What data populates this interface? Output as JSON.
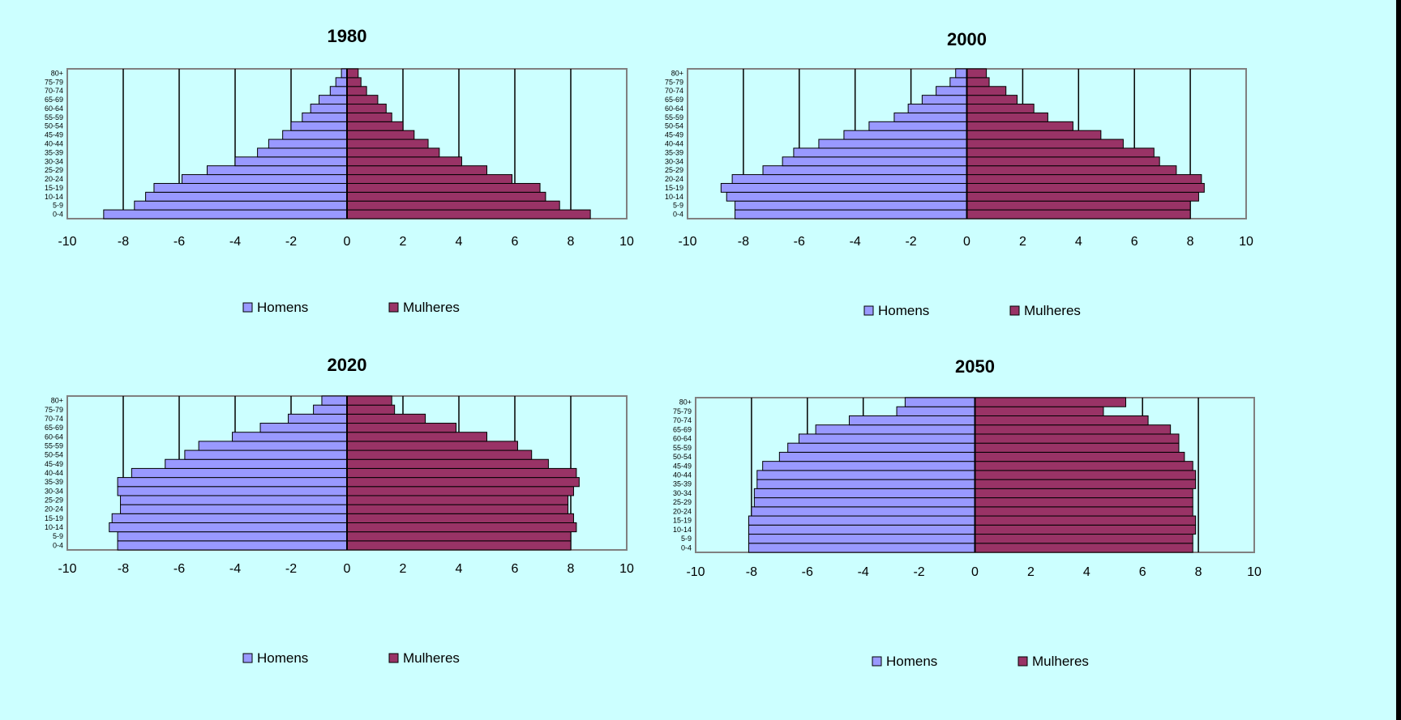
{
  "colors": {
    "men": "#9999ff",
    "women": "#993366",
    "background": "#ccffff",
    "bar_edge": "#000000"
  },
  "chart_data": [
    {
      "type": "bar",
      "orientation": "horizontal",
      "title": "1980",
      "categories": [
        "0-4",
        "5-9",
        "10-14",
        "15-19",
        "20-24",
        "25-29",
        "30-34",
        "35-39",
        "40-44",
        "45-49",
        "50-54",
        "55-59",
        "60-64",
        "65-69",
        "70-74",
        "75-79",
        "80+"
      ],
      "xlim": [
        -10,
        10
      ],
      "xticks": [
        "-10",
        "-8",
        "-6",
        "-4",
        "-2",
        "0",
        "2",
        "4",
        "6",
        "8",
        "10"
      ],
      "grid": "vertical",
      "legend_position": "bottom",
      "series": [
        {
          "name": "Homens",
          "values": [
            -8.7,
            -7.6,
            -7.2,
            -6.9,
            -5.9,
            -5.0,
            -4.0,
            -3.2,
            -2.8,
            -2.3,
            -2.0,
            -1.6,
            -1.3,
            -1.0,
            -0.6,
            -0.4,
            -0.2
          ]
        },
        {
          "name": "Mulheres",
          "values": [
            8.7,
            7.6,
            7.1,
            6.9,
            5.9,
            5.0,
            4.1,
            3.3,
            2.9,
            2.4,
            2.0,
            1.6,
            1.4,
            1.1,
            0.7,
            0.5,
            0.4
          ]
        }
      ]
    },
    {
      "type": "bar",
      "orientation": "horizontal",
      "title": "2000",
      "categories": [
        "0-4",
        "5-9",
        "10-14",
        "15-19",
        "20-24",
        "25-29",
        "30-34",
        "35-39",
        "40-44",
        "45-49",
        "50-54",
        "55-59",
        "60-64",
        "65-69",
        "70-74",
        "75-79",
        "80+"
      ],
      "xlim": [
        -10,
        10
      ],
      "xticks": [
        "-10",
        "-8",
        "-6",
        "-4",
        "-2",
        "0",
        "2",
        "4",
        "6",
        "8",
        "10"
      ],
      "grid": "vertical",
      "legend_position": "bottom",
      "series": [
        {
          "name": "Homens",
          "values": [
            -8.3,
            -8.3,
            -8.6,
            -8.8,
            -8.4,
            -7.3,
            -6.6,
            -6.2,
            -5.3,
            -4.4,
            -3.5,
            -2.6,
            -2.1,
            -1.6,
            -1.1,
            -0.6,
            -0.4
          ]
        },
        {
          "name": "Mulheres",
          "values": [
            8.0,
            8.0,
            8.3,
            8.5,
            8.4,
            7.5,
            6.9,
            6.7,
            5.6,
            4.8,
            3.8,
            2.9,
            2.4,
            1.8,
            1.4,
            0.8,
            0.7
          ]
        }
      ]
    },
    {
      "type": "bar",
      "orientation": "horizontal",
      "title": "2020",
      "categories": [
        "0-4",
        "5-9",
        "10-14",
        "15-19",
        "20-24",
        "25-29",
        "30-34",
        "35-39",
        "40-44",
        "45-49",
        "50-54",
        "55-59",
        "60-64",
        "65-69",
        "70-74",
        "75-79",
        "80+"
      ],
      "xlim": [
        -10,
        10
      ],
      "xticks": [
        "-10",
        "-8",
        "-6",
        "-4",
        "-2",
        "0",
        "2",
        "4",
        "6",
        "8",
        "10"
      ],
      "grid": "vertical",
      "legend_position": "bottom",
      "series": [
        {
          "name": "Homens",
          "values": [
            -8.2,
            -8.2,
            -8.5,
            -8.4,
            -8.1,
            -8.1,
            -8.2,
            -8.2,
            -7.7,
            -6.5,
            -5.8,
            -5.3,
            -4.1,
            -3.1,
            -2.1,
            -1.2,
            -0.9
          ]
        },
        {
          "name": "Mulheres",
          "values": [
            8.0,
            8.0,
            8.2,
            8.1,
            7.9,
            7.9,
            8.1,
            8.3,
            8.2,
            7.2,
            6.6,
            6.1,
            5.0,
            3.9,
            2.8,
            1.7,
            1.6
          ]
        }
      ]
    },
    {
      "type": "bar",
      "orientation": "horizontal",
      "title": "2050",
      "categories": [
        "0-4",
        "5-9",
        "10-14",
        "15-19",
        "20-24",
        "25-29",
        "30-34",
        "35-39",
        "40-44",
        "45-49",
        "50-54",
        "55-59",
        "60-64",
        "65-69",
        "70-74",
        "75-79",
        "80+"
      ],
      "xlim": [
        -10,
        10
      ],
      "xticks": [
        "-10",
        "-8",
        "-6",
        "-4",
        "-2",
        "0",
        "2",
        "4",
        "6",
        "8",
        "10"
      ],
      "grid": "vertical",
      "legend_position": "bottom",
      "series": [
        {
          "name": "Homens",
          "values": [
            -8.1,
            -8.1,
            -8.1,
            -8.1,
            -8.0,
            -7.9,
            -7.9,
            -7.8,
            -7.8,
            -7.6,
            -7.0,
            -6.7,
            -6.3,
            -5.7,
            -4.5,
            -2.8,
            -2.5
          ]
        },
        {
          "name": "Mulheres",
          "values": [
            7.8,
            7.8,
            7.9,
            7.9,
            7.8,
            7.8,
            7.8,
            7.9,
            7.9,
            7.8,
            7.5,
            7.3,
            7.3,
            7.0,
            6.2,
            4.6,
            5.4
          ]
        }
      ]
    }
  ]
}
